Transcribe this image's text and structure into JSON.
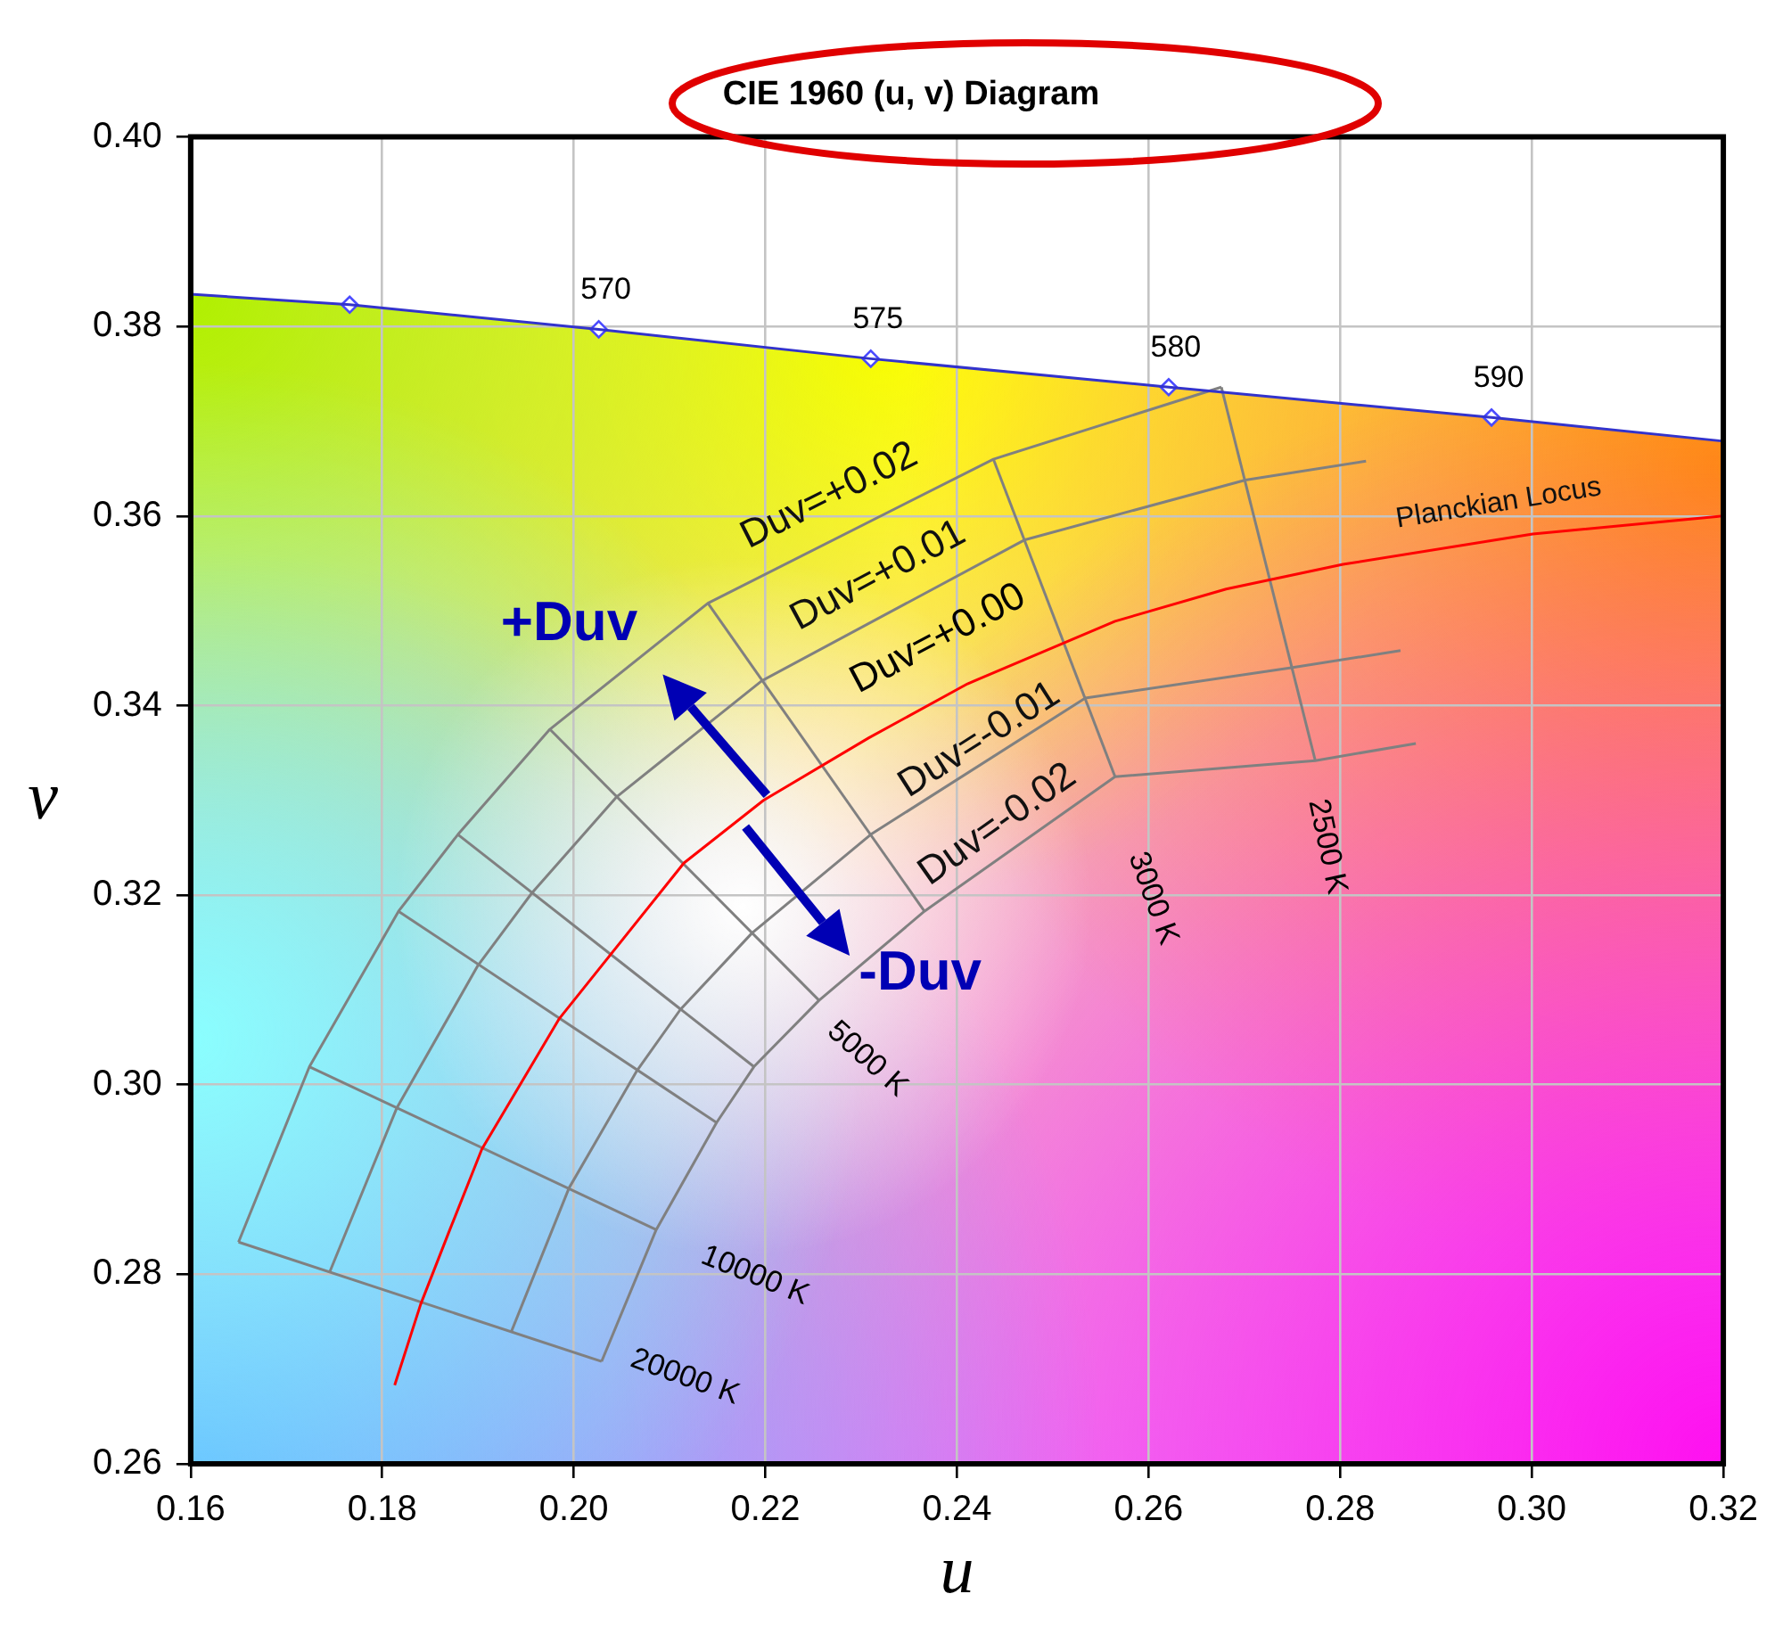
{
  "chart_data": {
    "type": "line",
    "title": "CIE 1960 (u, v) Diagram",
    "xlabel": "u",
    "ylabel": "v",
    "xlim": [
      0.16,
      0.32
    ],
    "xticks": [
      0.16,
      0.18,
      {
        "value": 0.2,
        "label": "0.20"
      },
      0.22,
      0.24,
      0.26,
      0.28,
      {
        "value": 0.3,
        "label": "0.30"
      },
      0.32
    ],
    "ylim": [
      0.26,
      0.4
    ],
    "yticks": [
      0.26,
      0.28,
      {
        "value": 0.3,
        "label": "0.30"
      },
      0.32,
      0.34,
      0.36,
      0.38,
      {
        "value": 0.4,
        "label": "0.40"
      }
    ],
    "grid": true,
    "series": [
      {
        "color": "#3333cc",
        "x": [
          0.16,
          0.1766,
          0.2026,
          0.231,
          0.2621,
          0.2958,
          0.32
        ],
        "values": [
          0.3834,
          0.3823,
          0.3797,
          0.3766,
          0.3736,
          0.3704,
          0.3679
        ]
      },
      {
        "type": "scatter",
        "marker": "diamond",
        "color": "#4a4aff",
        "x": [
          0.1766,
          0.2026,
          0.231,
          0.2621,
          0.2958
        ],
        "values": [
          0.3823,
          0.3797,
          0.3766,
          0.3736,
          0.3704
        ]
      },
      {
        "name": "Planckian Locus",
        "color": "#ff0000",
        "x": [
          0.1813,
          0.184,
          0.1869,
          0.1904,
          0.1985,
          0.2115,
          0.2198,
          0.2308,
          0.2411,
          0.2565,
          0.2681,
          0.2803,
          0.3001,
          0.32
        ],
        "values": [
          0.2683,
          0.2768,
          0.2843,
          0.2932,
          0.307,
          0.3234,
          0.33,
          0.3366,
          0.3423,
          0.3489,
          0.3523,
          0.3549,
          0.3581,
          0.36
        ]
      },
      {
        "name": "Duv=+0.02",
        "color": "#808080",
        "x": [
          0.165,
          0.1724,
          0.1817,
          0.1879,
          0.1975,
          0.214,
          0.2438,
          0.2676
        ],
        "values": [
          0.2834,
          0.3019,
          0.3183,
          0.3264,
          0.3375,
          0.3508,
          0.366,
          0.3736
        ]
      },
      {
        "name": "Duv=+0.01",
        "color": "#808080",
        "x": [
          0.1745,
          0.1815,
          0.19,
          0.1956,
          0.2045,
          0.2196,
          0.2471,
          0.2701,
          0.2827
        ],
        "values": [
          0.2802,
          0.2975,
          0.3126,
          0.3202,
          0.3304,
          0.3426,
          0.3575,
          0.3638,
          0.3658
        ]
      },
      {
        "name": "Duv=-0.01",
        "color": "#808080",
        "x": [
          0.1935,
          0.1995,
          0.2066,
          0.2111,
          0.2186,
          0.231,
          0.2534,
          0.2749,
          0.2863
        ],
        "values": [
          0.274,
          0.2891,
          0.3015,
          0.3079,
          0.316,
          0.3264,
          0.3408,
          0.344,
          0.3458
        ]
      },
      {
        "name": "Duv=-0.02",
        "color": "#808080",
        "x": [
          0.2029,
          0.2086,
          0.2149,
          0.2188,
          0.2256,
          0.2366,
          0.2565,
          0.2774,
          0.2879
        ],
        "values": [
          0.2708,
          0.2847,
          0.296,
          0.3019,
          0.3089,
          0.3183,
          0.3325,
          0.3342,
          0.336
        ]
      },
      {
        "color": "#808080",
        "x": [
          0.165,
          0.2029
        ],
        "values": [
          0.2834,
          0.2708
        ]
      },
      {
        "color": "#808080",
        "x": [
          0.1724,
          0.2086
        ],
        "values": [
          0.3019,
          0.2847
        ]
      },
      {
        "color": "#808080",
        "x": [
          0.1817,
          0.2149
        ],
        "values": [
          0.3183,
          0.296
        ]
      },
      {
        "color": "#808080",
        "x": [
          0.1879,
          0.2188
        ],
        "values": [
          0.3264,
          0.3019
        ]
      },
      {
        "color": "#808080",
        "x": [
          0.1975,
          0.2256
        ],
        "values": [
          0.3375,
          0.3089
        ]
      },
      {
        "color": "#808080",
        "x": [
          0.214,
          0.2366
        ],
        "values": [
          0.3508,
          0.3183
        ]
      },
      {
        "color": "#808080",
        "x": [
          0.2438,
          0.2565
        ],
        "values": [
          0.366,
          0.3325
        ]
      },
      {
        "color": "#808080",
        "x": [
          0.2676,
          0.2774
        ],
        "values": [
          0.3736,
          0.3342
        ]
      }
    ],
    "annotations": [
      {
        "text": "Duv=+0.00",
        "x": 0.233,
        "y": 0.3378
      },
      "+Duv",
      "-Duv",
      {
        "text": "20000 K",
        "x": 0.2029,
        "y": 0.2708
      },
      {
        "text": "10000 K",
        "x": 0.2086,
        "y": 0.2847
      },
      {
        "text": "5000 K",
        "x": 0.2256,
        "y": 0.3089
      },
      {
        "text": "3000 K",
        "x": 0.2565,
        "y": 0.3325
      },
      {
        "text": "2500 K",
        "x": 0.2774,
        "y": 0.3342
      },
      {
        "text": "570",
        "x": 0.2026,
        "y": 0.3797
      },
      {
        "text": "575",
        "x": 0.231,
        "y": 0.3766
      },
      {
        "text": "580",
        "x": 0.2621,
        "y": 0.3736
      },
      {
        "text": "590",
        "x": 0.2958,
        "y": 0.3704
      }
    ]
  }
}
